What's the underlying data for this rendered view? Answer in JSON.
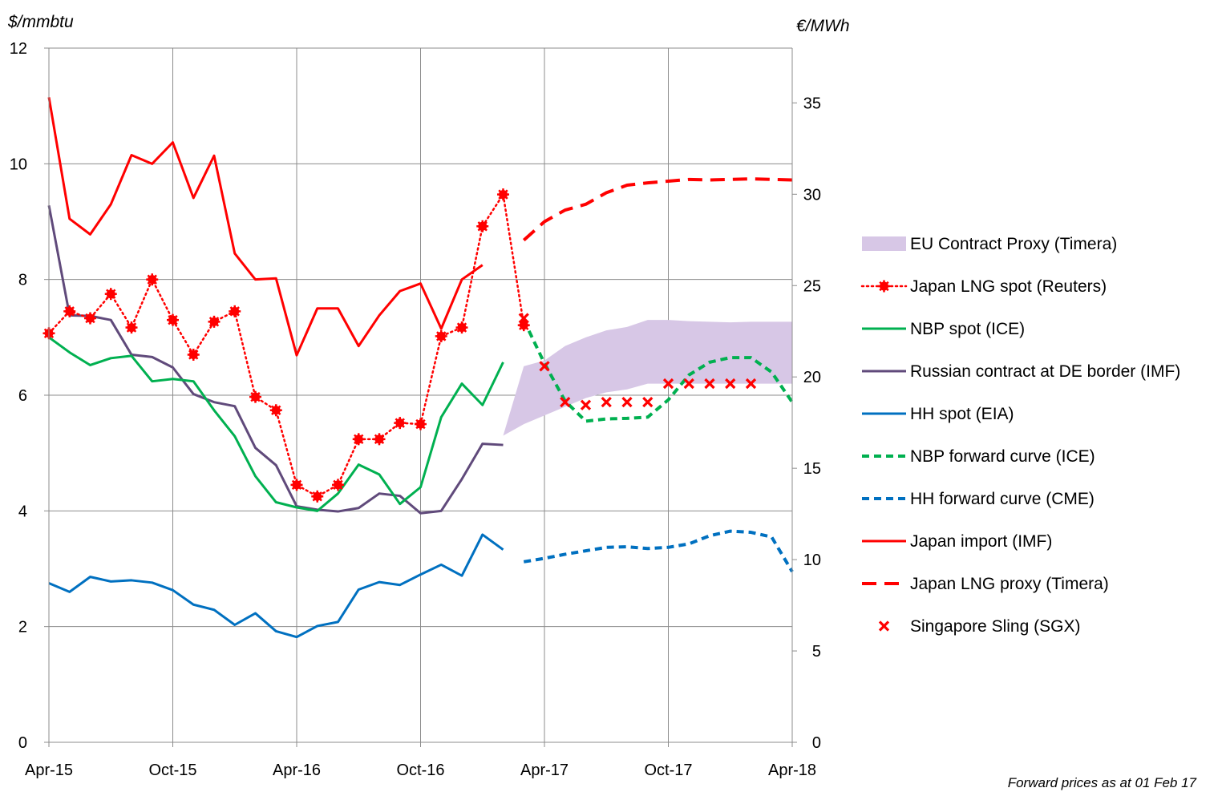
{
  "chart_data": {
    "type": "line",
    "left_axis": {
      "unit": "$/mmbtu",
      "ylim": [
        0,
        12
      ],
      "ticks": [
        "0",
        "2",
        "4",
        "6",
        "8",
        "10",
        "12"
      ]
    },
    "right_axis": {
      "unit": "€/MWh",
      "ylim": [
        0,
        38
      ],
      "ticks": [
        "0",
        "5",
        "10",
        "15",
        "20",
        "25",
        "30",
        "35"
      ]
    },
    "x_tick_labels": [
      "Apr-15",
      "Oct-15",
      "Apr-16",
      "Oct-16",
      "Apr-17",
      "Oct-17",
      "Apr-18"
    ],
    "x_months": [
      "2015-04",
      "2015-05",
      "2015-06",
      "2015-07",
      "2015-08",
      "2015-09",
      "2015-10",
      "2015-11",
      "2015-12",
      "2016-01",
      "2016-02",
      "2016-03",
      "2016-04",
      "2016-05",
      "2016-06",
      "2016-07",
      "2016-08",
      "2016-09",
      "2016-10",
      "2016-11",
      "2016-12",
      "2017-01",
      "2017-02",
      "2017-03",
      "2017-04",
      "2017-05",
      "2017-06",
      "2017-07",
      "2017-08",
      "2017-09",
      "2017-10",
      "2017-11",
      "2017-12",
      "2018-01",
      "2018-02",
      "2018-03",
      "2018-04"
    ],
    "grid": true,
    "legend_position": "right",
    "note": "Forward prices as at 01 Feb 17",
    "band": {
      "name": "EU Contract Proxy (Timera)",
      "color": "#d7c7e6",
      "x": [
        "2017-02",
        "2017-03",
        "2017-04",
        "2017-05",
        "2017-06",
        "2017-07",
        "2017-08",
        "2017-09",
        "2017-10",
        "2017-11",
        "2017-12",
        "2018-01",
        "2018-02",
        "2018-03",
        "2018-04"
      ],
      "low": [
        5.3,
        5.5,
        5.65,
        5.8,
        5.95,
        6.05,
        6.1,
        6.2,
        6.2,
        6.2,
        6.2,
        6.2,
        6.2,
        6.2,
        6.2
      ],
      "high": [
        5.3,
        6.5,
        6.6,
        6.85,
        7.0,
        7.12,
        7.18,
        7.3,
        7.3,
        7.28,
        7.27,
        7.26,
        7.27,
        7.27,
        7.27
      ]
    },
    "series": [
      {
        "name": "Japan LNG spot (Reuters)",
        "style": "dotted-marker",
        "color": "#ff0000",
        "x": [
          "2015-04",
          "2015-05",
          "2015-06",
          "2015-07",
          "2015-08",
          "2015-09",
          "2015-10",
          "2015-11",
          "2015-12",
          "2016-01",
          "2016-02",
          "2016-03",
          "2016-04",
          "2016-05",
          "2016-06",
          "2016-07",
          "2016-08",
          "2016-09",
          "2016-10",
          "2016-11",
          "2016-12",
          "2017-01",
          "2017-02",
          "2017-03"
        ],
        "y": [
          7.07,
          7.45,
          7.33,
          7.75,
          7.17,
          8.0,
          7.3,
          6.7,
          7.27,
          7.45,
          5.97,
          5.74,
          4.45,
          4.25,
          4.45,
          5.24,
          5.24,
          5.52,
          5.5,
          7.02,
          7.17,
          8.92,
          9.47,
          7.21
        ]
      },
      {
        "name": "NBP spot (ICE)",
        "style": "solid",
        "color": "#00b050",
        "x": [
          "2015-04",
          "2015-05",
          "2015-06",
          "2015-07",
          "2015-08",
          "2015-09",
          "2015-10",
          "2015-11",
          "2015-12",
          "2016-01",
          "2016-02",
          "2016-03",
          "2016-04",
          "2016-05",
          "2016-06",
          "2016-07",
          "2016-08",
          "2016-09",
          "2016-10",
          "2016-11",
          "2016-12",
          "2017-01",
          "2017-02"
        ],
        "y": [
          7.0,
          6.74,
          6.52,
          6.64,
          6.68,
          6.24,
          6.28,
          6.24,
          5.74,
          5.29,
          4.6,
          4.15,
          4.06,
          4.0,
          4.3,
          4.8,
          4.63,
          4.12,
          4.41,
          5.62,
          6.2,
          5.83,
          6.57
        ]
      },
      {
        "name": "Russian contract at DE border (IMF)",
        "style": "solid",
        "color": "#604a7b",
        "x": [
          "2015-04",
          "2015-05",
          "2015-06",
          "2015-07",
          "2015-08",
          "2015-09",
          "2015-10",
          "2015-11",
          "2015-12",
          "2016-01",
          "2016-02",
          "2016-03",
          "2016-04",
          "2016-05",
          "2016-06",
          "2016-07",
          "2016-08",
          "2016-09",
          "2016-10",
          "2016-11",
          "2016-12",
          "2017-01",
          "2017-02"
        ],
        "y": [
          9.28,
          7.38,
          7.37,
          7.3,
          6.7,
          6.66,
          6.48,
          6.02,
          5.88,
          5.81,
          5.09,
          4.79,
          4.08,
          4.02,
          3.99,
          4.05,
          4.3,
          4.26,
          3.96,
          4.0,
          4.55,
          5.16,
          5.14
        ]
      },
      {
        "name": "HH spot (EIA)",
        "style": "solid",
        "color": "#0070c0",
        "x": [
          "2015-04",
          "2015-05",
          "2015-06",
          "2015-07",
          "2015-08",
          "2015-09",
          "2015-10",
          "2015-11",
          "2015-12",
          "2016-01",
          "2016-02",
          "2016-03",
          "2016-04",
          "2016-05",
          "2016-06",
          "2016-07",
          "2016-08",
          "2016-09",
          "2016-10",
          "2016-11",
          "2016-12",
          "2017-01",
          "2017-02"
        ],
        "y": [
          2.75,
          2.6,
          2.86,
          2.78,
          2.8,
          2.76,
          2.63,
          2.38,
          2.29,
          2.03,
          2.23,
          1.92,
          1.82,
          2.01,
          2.08,
          2.64,
          2.77,
          2.72,
          2.9,
          3.07,
          2.88,
          3.59,
          3.33
        ]
      },
      {
        "name": "NBP forward curve (ICE)",
        "style": "dashed",
        "color": "#00b050",
        "x": [
          "2017-03",
          "2017-04",
          "2017-05",
          "2017-06",
          "2017-07",
          "2017-08",
          "2017-09",
          "2017-10",
          "2017-11",
          "2017-12",
          "2018-01",
          "2018-02",
          "2018-03",
          "2018-04"
        ],
        "y": [
          7.3,
          6.55,
          5.9,
          5.55,
          5.59,
          5.6,
          5.62,
          5.92,
          6.35,
          6.57,
          6.65,
          6.65,
          6.4,
          5.88
        ]
      },
      {
        "name": "HH forward curve (CME)",
        "style": "dashed",
        "color": "#0070c0",
        "x": [
          "2017-03",
          "2017-04",
          "2017-05",
          "2017-06",
          "2017-07",
          "2017-08",
          "2017-09",
          "2017-10",
          "2017-11",
          "2017-12",
          "2018-01",
          "2018-02",
          "2018-03",
          "2018-04"
        ],
        "y": [
          3.12,
          3.18,
          3.25,
          3.31,
          3.37,
          3.38,
          3.35,
          3.37,
          3.43,
          3.57,
          3.65,
          3.63,
          3.55,
          2.95
        ]
      },
      {
        "name": "Japan import (IMF)",
        "style": "solid",
        "color": "#ff0000",
        "x": [
          "2015-04",
          "2015-05",
          "2015-06",
          "2015-07",
          "2015-08",
          "2015-09",
          "2015-10",
          "2015-11",
          "2015-12",
          "2016-01",
          "2016-02",
          "2016-03",
          "2016-04",
          "2016-05",
          "2016-06",
          "2016-07",
          "2016-08",
          "2016-09",
          "2016-10",
          "2016-11",
          "2016-12",
          "2017-01"
        ],
        "y": [
          11.15,
          9.05,
          8.78,
          9.3,
          10.15,
          10.0,
          10.37,
          9.41,
          10.14,
          8.45,
          8.0,
          8.02,
          6.69,
          7.5,
          7.5,
          6.85,
          7.38,
          7.8,
          7.93,
          7.15,
          8.0,
          8.25
        ]
      },
      {
        "name": "Japan LNG proxy (Timera)",
        "style": "long-dashed",
        "color": "#ff0000",
        "x": [
          "2017-03",
          "2017-04",
          "2017-05",
          "2017-06",
          "2017-07",
          "2017-08",
          "2017-09",
          "2017-10",
          "2017-11",
          "2017-12",
          "2018-01",
          "2018-02",
          "2018-03",
          "2018-04"
        ],
        "y": [
          8.68,
          9.0,
          9.2,
          9.3,
          9.5,
          9.63,
          9.67,
          9.7,
          9.73,
          9.72,
          9.73,
          9.74,
          9.73,
          9.72
        ]
      },
      {
        "name": "Singapore Sling (SGX)",
        "style": "x-marker",
        "color": "#ff0000",
        "x": [
          "2017-03",
          "2017-04",
          "2017-05",
          "2017-06",
          "2017-07",
          "2017-08",
          "2017-09",
          "2017-10",
          "2017-11",
          "2017-12",
          "2018-01",
          "2018-02"
        ],
        "y": [
          7.33,
          6.5,
          5.88,
          5.83,
          5.88,
          5.88,
          5.88,
          6.2,
          6.2,
          6.2,
          6.2,
          6.2
        ]
      }
    ]
  }
}
